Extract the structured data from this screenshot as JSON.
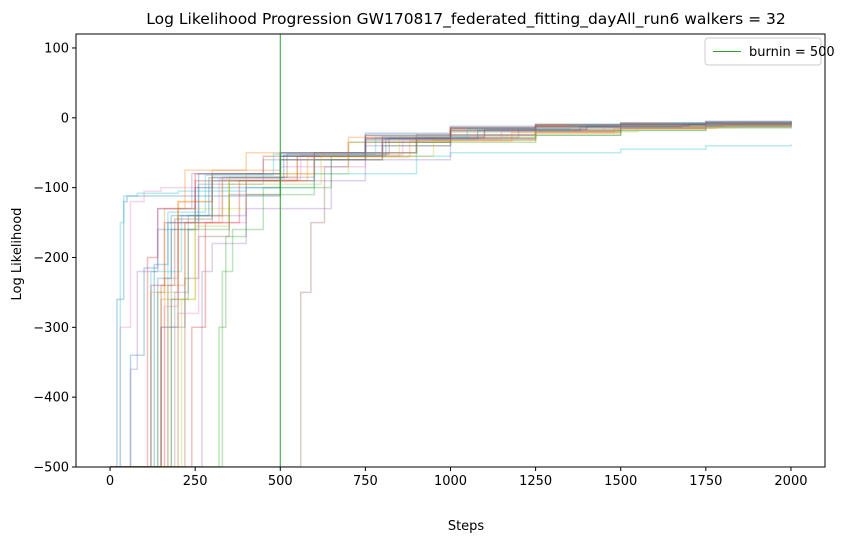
{
  "chart_data": {
    "type": "line",
    "title": "Log Likelihood Progression GW170817_federated_fitting_dayAll_run6 walkers = 32",
    "xlabel": "Steps",
    "ylabel": "Log Likelihood",
    "xlim": [
      -100,
      2100
    ],
    "ylim": [
      -500,
      120
    ],
    "xticks": [
      0,
      250,
      500,
      750,
      1000,
      1250,
      1500,
      1750,
      2000
    ],
    "yticks": [
      100,
      0,
      -100,
      -200,
      -300,
      -400,
      -500
    ],
    "xtick_labels": [
      "0",
      "250",
      "500",
      "750",
      "1000",
      "1250",
      "1500",
      "1750",
      "2000"
    ],
    "ytick_labels": [
      "100",
      "0",
      "−100",
      "−200",
      "−300",
      "−400",
      "−500"
    ],
    "grid": false,
    "legend_position": "top-right",
    "burnin": {
      "x": 500,
      "label": "burnin = 500",
      "color": "#2ca02c"
    },
    "series_colors": [
      "#1f77b4",
      "#ff7f0e",
      "#2ca02c",
      "#d62728",
      "#9467bd",
      "#8c564b",
      "#e377c2",
      "#7f7f7f",
      "#bcbd22",
      "#17becf"
    ],
    "series": [
      {
        "x": [
          0,
          20,
          40,
          50,
          500,
          750,
          1000,
          1250,
          1500,
          1750,
          2000
        ],
        "values": [
          -500,
          -260,
          -120,
          -112,
          -50,
          -22,
          -12,
          -9,
          -7,
          -5,
          -4
        ]
      },
      {
        "x": [
          0,
          110,
          150,
          200,
          300,
          500,
          750,
          1000,
          1250,
          1500,
          1750,
          2000
        ],
        "values": [
          -500,
          -500,
          -260,
          -120,
          -75,
          -55,
          -30,
          -15,
          -11,
          -9,
          -8,
          -7
        ]
      },
      {
        "x": [
          0,
          300,
          320,
          340,
          400,
          600,
          800,
          1000,
          1250,
          1500,
          1750,
          2000
        ],
        "values": [
          -500,
          -500,
          -300,
          -170,
          -110,
          -60,
          -40,
          -30,
          -25,
          -18,
          -14,
          -12
        ]
      },
      {
        "x": [
          0,
          80,
          120,
          160,
          250,
          500,
          750,
          1000,
          1250,
          1500,
          1750,
          2000
        ],
        "values": [
          -500,
          -500,
          -240,
          -150,
          -90,
          -55,
          -25,
          -14,
          -10,
          -8,
          -6,
          -5
        ]
      },
      {
        "x": [
          0,
          110,
          150,
          200,
          400,
          750,
          1000,
          1250,
          1500,
          1750,
          2000
        ],
        "values": [
          -500,
          -500,
          -300,
          -140,
          -90,
          -40,
          -20,
          -13,
          -10,
          -8,
          -6
        ]
      },
      {
        "x": [
          0,
          540,
          560,
          590,
          630,
          700,
          900,
          1250,
          1500,
          1750,
          2000
        ],
        "values": [
          -500,
          -500,
          -250,
          -150,
          -70,
          -35,
          -24,
          -15,
          -11,
          -8,
          -6
        ]
      },
      {
        "x": [
          0,
          30,
          60,
          100,
          150,
          300,
          500,
          750,
          1000,
          1250,
          1500,
          1750,
          2000
        ],
        "values": [
          -500,
          -300,
          -120,
          -105,
          -100,
          -90,
          -70,
          -30,
          -15,
          -11,
          -9,
          -7,
          -6
        ]
      },
      {
        "x": [
          0,
          150,
          180,
          220,
          300,
          500,
          750,
          1000,
          1250,
          1500,
          1750,
          2000
        ],
        "values": [
          -500,
          -500,
          -300,
          -150,
          -80,
          -55,
          -35,
          -25,
          -20,
          -15,
          -12,
          -10
        ]
      },
      {
        "x": [
          0,
          100,
          140,
          200,
          400,
          700,
          1000,
          1250,
          1500,
          1750,
          2000
        ],
        "values": [
          -500,
          -500,
          -250,
          -130,
          -80,
          -35,
          -20,
          -14,
          -11,
          -9,
          -8
        ]
      },
      {
        "x": [
          0,
          30,
          40,
          80,
          200,
          400,
          600,
          900,
          1000,
          1250,
          1500,
          1750,
          2000
        ],
        "values": [
          -500,
          -150,
          -112,
          -108,
          -105,
          -100,
          -80,
          -55,
          -50,
          -50,
          -45,
          -40,
          -38
        ]
      },
      {
        "x": [
          0,
          60,
          100,
          140,
          250,
          500,
          750,
          1000,
          1250,
          1500,
          1750,
          2000
        ],
        "values": [
          -500,
          -340,
          -215,
          -160,
          -100,
          -60,
          -30,
          -16,
          -12,
          -9,
          -7,
          -5
        ]
      },
      {
        "x": [
          0,
          120,
          160,
          200,
          300,
          600,
          900,
          1250,
          1500,
          1750,
          2000
        ],
        "values": [
          -500,
          -500,
          -230,
          -120,
          -80,
          -50,
          -32,
          -22,
          -16,
          -12,
          -10
        ]
      },
      {
        "x": [
          0,
          140,
          180,
          230,
          350,
          600,
          900,
          1250,
          1500,
          1750,
          2000
        ],
        "values": [
          -500,
          -500,
          -260,
          -160,
          -90,
          -50,
          -28,
          -18,
          -13,
          -10,
          -8
        ]
      },
      {
        "x": [
          0,
          90,
          110,
          140,
          250,
          450,
          750,
          1000,
          1250,
          1500,
          1750,
          2000
        ],
        "values": [
          -500,
          -500,
          -200,
          -130,
          -80,
          -55,
          -28,
          -15,
          -11,
          -9,
          -7,
          -6
        ]
      },
      {
        "x": [
          0,
          250,
          270,
          300,
          400,
          650,
          1000,
          1250,
          1500,
          1750,
          2000
        ],
        "values": [
          -500,
          -500,
          -220,
          -180,
          -130,
          -60,
          -30,
          -20,
          -15,
          -12,
          -10
        ]
      },
      {
        "x": [
          0,
          200,
          220,
          260,
          350,
          500,
          800,
          1000,
          1250,
          1500,
          1750,
          2000
        ],
        "values": [
          -500,
          -500,
          -230,
          -170,
          -110,
          -60,
          -35,
          -25,
          -18,
          -14,
          -11,
          -9
        ]
      },
      {
        "x": [
          0,
          160,
          200,
          260,
          400,
          600,
          900,
          1250,
          1500,
          1750,
          2000
        ],
        "values": [
          -500,
          -500,
          -280,
          -150,
          -90,
          -50,
          -30,
          -20,
          -14,
          -10,
          -8
        ]
      },
      {
        "x": [
          0,
          120,
          150,
          180,
          260,
          450,
          750,
          1000,
          1250,
          1500,
          1750,
          2000
        ],
        "values": [
          -500,
          -500,
          -300,
          -160,
          -95,
          -60,
          -32,
          -18,
          -12,
          -9,
          -7,
          -6
        ]
      },
      {
        "x": [
          0,
          180,
          210,
          250,
          350,
          550,
          850,
          1250,
          1500,
          1750,
          2000
        ],
        "values": [
          -500,
          -500,
          -260,
          -140,
          -85,
          -55,
          -28,
          -18,
          -12,
          -9,
          -7
        ]
      },
      {
        "x": [
          0,
          130,
          170,
          210,
          300,
          500,
          800,
          1000,
          1250,
          1500,
          1750,
          2000
        ],
        "values": [
          -500,
          -500,
          -220,
          -140,
          -90,
          -55,
          -30,
          -18,
          -13,
          -10,
          -8,
          -7
        ]
      },
      {
        "x": [
          0,
          100,
          130,
          170,
          260,
          500,
          750,
          1000,
          1250,
          1500,
          1750,
          2000
        ],
        "values": [
          -500,
          -500,
          -210,
          -150,
          -80,
          -50,
          -25,
          -14,
          -10,
          -8,
          -6,
          -5
        ]
      },
      {
        "x": [
          0,
          90,
          120,
          160,
          220,
          400,
          700,
          1000,
          1250,
          1500,
          1750,
          2000
        ],
        "values": [
          -500,
          -500,
          -250,
          -130,
          -75,
          -50,
          -28,
          -15,
          -11,
          -9,
          -7,
          -6
        ]
      },
      {
        "x": [
          0,
          300,
          330,
          360,
          450,
          650,
          900,
          1250,
          1500,
          1750,
          2000
        ],
        "values": [
          -500,
          -500,
          -220,
          -160,
          -100,
          -55,
          -35,
          -25,
          -18,
          -14,
          -12
        ]
      },
      {
        "x": [
          0,
          200,
          240,
          280,
          380,
          550,
          800,
          1000,
          1250,
          1500,
          1750,
          2000
        ],
        "values": [
          -500,
          -500,
          -300,
          -150,
          -90,
          -55,
          -30,
          -18,
          -13,
          -10,
          -8,
          -7
        ]
      },
      {
        "x": [
          0,
          60,
          80,
          140,
          240,
          500,
          800,
          1100,
          1400,
          1700,
          2000
        ],
        "values": [
          -500,
          -360,
          -220,
          -130,
          -80,
          -50,
          -27,
          -16,
          -11,
          -8,
          -6
        ]
      },
      {
        "x": [
          0,
          110,
          150,
          190,
          300,
          520,
          820,
          1100,
          1400,
          1700,
          2000
        ],
        "values": [
          -500,
          -500,
          -240,
          -145,
          -85,
          -52,
          -29,
          -17,
          -12,
          -9,
          -7
        ]
      },
      {
        "x": [
          0,
          130,
          160,
          200,
          320,
          560,
          860,
          1150,
          1450,
          1750,
          2000
        ],
        "values": [
          -500,
          -500,
          -270,
          -150,
          -88,
          -53,
          -31,
          -19,
          -13,
          -10,
          -8
        ]
      },
      {
        "x": [
          0,
          150,
          190,
          230,
          330,
          600,
          900,
          1200,
          1500,
          1800,
          2000
        ],
        "values": [
          -500,
          -500,
          -250,
          -140,
          -85,
          -50,
          -28,
          -17,
          -12,
          -9,
          -8
        ]
      },
      {
        "x": [
          0,
          170,
          200,
          250,
          350,
          620,
          950,
          1250,
          1550,
          1850,
          2000
        ],
        "values": [
          -500,
          -500,
          -260,
          -155,
          -95,
          -55,
          -32,
          -20,
          -14,
          -11,
          -10
        ]
      },
      {
        "x": [
          0,
          80,
          120,
          170,
          280,
          480,
          780,
          1050,
          1350,
          1650,
          2000
        ],
        "values": [
          -500,
          -500,
          -220,
          -135,
          -82,
          -52,
          -28,
          -16,
          -11,
          -8,
          -6
        ]
      },
      {
        "x": [
          0,
          100,
          140,
          180,
          290,
          510,
          810,
          1080,
          1380,
          1680,
          2000
        ],
        "values": [
          -500,
          -500,
          -230,
          -140,
          -86,
          -54,
          -30,
          -18,
          -13,
          -10,
          -7
        ]
      },
      {
        "x": [
          0,
          140,
          170,
          220,
          330,
          580,
          880,
          1180,
          1480,
          1780,
          2000
        ],
        "values": [
          -500,
          -500,
          -240,
          -150,
          -90,
          -56,
          -33,
          -21,
          -15,
          -11,
          -9
        ]
      }
    ]
  }
}
